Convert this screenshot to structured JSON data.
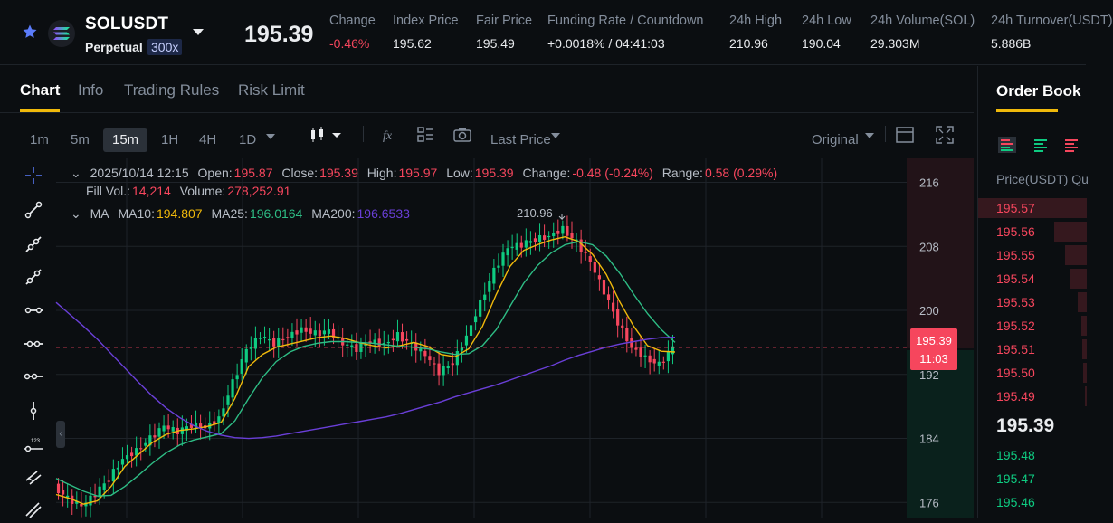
{
  "header": {
    "symbol": "SOLUSDT",
    "contract_type": "Perpetual",
    "leverage": "300x",
    "last_price": "195.39",
    "stats": [
      {
        "label": "Change",
        "value": "-0.46%",
        "tone": "neg"
      },
      {
        "label": "Index Price",
        "value": "195.62",
        "tone": ""
      },
      {
        "label": "Fair Price",
        "value": "195.49",
        "tone": ""
      },
      {
        "label": "Funding Rate  /  Countdown",
        "value": "+0.0018%  /  04:41:03",
        "tone": ""
      },
      {
        "label": "24h High",
        "value": "210.96",
        "tone": ""
      },
      {
        "label": "24h Low",
        "value": "190.04",
        "tone": ""
      },
      {
        "label": "24h Volume(SOL)",
        "value": "29.303M",
        "tone": ""
      },
      {
        "label": "24h Turnover(USDT)",
        "value": "5.886B",
        "tone": ""
      }
    ]
  },
  "tabs": [
    "Chart",
    "Info",
    "Trading Rules",
    "Risk Limit"
  ],
  "toolbar": {
    "intervals": [
      "1m",
      "5m",
      "15m",
      "1H",
      "4H",
      "1D"
    ],
    "active_interval": "15m",
    "price_type": "Last Price",
    "view_mode": "Original"
  },
  "legend": {
    "datetime": "2025/10/14 12:15",
    "open_label": "Open:",
    "open": "195.87",
    "close_label": "Close:",
    "close": "195.39",
    "high_label": "High:",
    "high": "195.97",
    "low_label": "Low:",
    "low": "195.39",
    "change_label": "Change:",
    "change": "-0.48 (-0.24%)",
    "range_label": "Range:",
    "range": "0.58 (0.29%)",
    "fill_label": "Fill Vol.:",
    "fill": "14,214",
    "volume_label": "Volume:",
    "volume": "278,252.91",
    "ma_label": "MA",
    "ma10_label": "MA10:",
    "ma10": "194.807",
    "ma25_label": "MA25:",
    "ma25": "196.0164",
    "ma200_label": "MA200:",
    "ma200": "196.6533"
  },
  "chart_price_tag": {
    "price": "195.39",
    "countdown": "11:03"
  },
  "chart_high_marker": "210.96",
  "colors": {
    "up": "#0ecb81",
    "down": "#f6465d",
    "ma10": "#f0b90b",
    "ma25": "#2ebd85",
    "ma200": "#6a3fd8",
    "accent": "#f0b90b"
  },
  "chart_data": {
    "type": "line",
    "y_ticks": [
      "216",
      "208",
      "200",
      "192",
      "184",
      "176"
    ],
    "ylim": [
      174,
      219
    ],
    "series": [
      {
        "name": "MA10",
        "values": [
          177,
          176.5,
          175.8,
          176.2,
          178,
          180.5,
          182,
          183.5,
          184.5,
          185,
          185.2,
          185.5,
          186,
          189,
          193,
          194.5,
          195.4,
          195.8,
          196.2,
          196.6,
          196.8,
          196.5,
          196,
          195.6,
          195.3,
          195.6,
          196,
          195.5,
          194.5,
          194.2,
          195.2,
          198,
          202,
          205.5,
          207.5,
          208.2,
          208.8,
          209.2,
          208.6,
          207,
          204.5,
          201,
          198,
          195.6,
          194.9,
          194.8
        ]
      },
      {
        "name": "MA25",
        "values": [
          179,
          178.2,
          177.4,
          176.8,
          176.9,
          178,
          179.4,
          180.9,
          182.2,
          183.2,
          183.8,
          184.2,
          184.6,
          186.2,
          189,
          191.6,
          193.6,
          194.8,
          195.5,
          195.9,
          196.1,
          196.1,
          196,
          195.9,
          195.7,
          195.5,
          195.4,
          195.2,
          194.8,
          194.5,
          194.6,
          195.6,
          197.6,
          200.5,
          203.4,
          205.6,
          207.2,
          208.2,
          208.6,
          208.2,
          206.8,
          204.6,
          202,
          199.6,
          197.6,
          196.0
        ]
      },
      {
        "name": "MA200",
        "values": [
          201,
          199.5,
          198,
          196.4,
          194.6,
          192.8,
          191,
          189.3,
          187.8,
          186.6,
          185.6,
          184.9,
          184.4,
          184.1,
          184,
          184.1,
          184.3,
          184.6,
          184.9,
          185.2,
          185.5,
          185.8,
          186.1,
          186.4,
          186.7,
          187.1,
          187.6,
          188.1,
          188.6,
          189.2,
          189.7,
          190.2,
          190.7,
          191.3,
          191.9,
          192.5,
          193.1,
          193.8,
          194.4,
          194.9,
          195.4,
          195.8,
          196.1,
          196.4,
          196.6,
          196.65
        ]
      }
    ],
    "candles": [
      178,
      176.5,
      175.5,
      177,
      179,
      181.5,
      182.5,
      184,
      185.5,
      184.8,
      185.7,
      185.4,
      186.5,
      191,
      195,
      196.8,
      195.9,
      196.8,
      197.7,
      197.1,
      197.4,
      195.8,
      195.2,
      196.2,
      195.8,
      196.9,
      195.7,
      194.4,
      192.3,
      193.5,
      196.8,
      201,
      205,
      207.8,
      208.2,
      208.9,
      209.3,
      210.2,
      208.5,
      206,
      202.3,
      198.5,
      195.4,
      194.1,
      193.2,
      195.39
    ]
  },
  "order_book": {
    "title": "Order Book",
    "price_header": "Price(USDT)",
    "qty_header": "Qu",
    "asks": [
      "195.57",
      "195.56",
      "195.55",
      "195.54",
      "195.53",
      "195.52",
      "195.51",
      "195.50",
      "195.49"
    ],
    "ask_depth": [
      1.0,
      0.3,
      0.2,
      0.15,
      0.08,
      0.05,
      0.04,
      0.03,
      0.02
    ],
    "mid_price": "195.39",
    "bids": [
      "195.48",
      "195.47",
      "195.46"
    ]
  }
}
